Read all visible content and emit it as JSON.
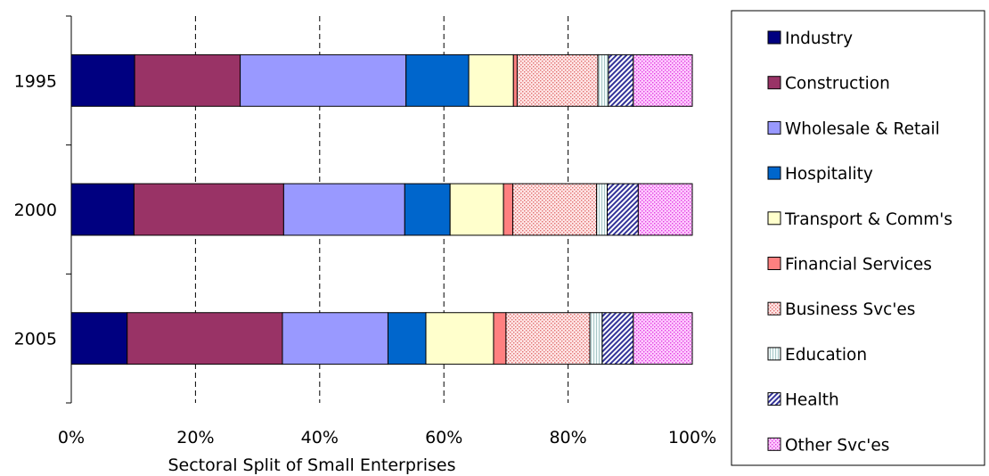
{
  "chart_data": {
    "type": "bar",
    "orientation": "horizontal",
    "stacked": "percent",
    "title": "",
    "xlabel": "Sectoral Split of Small Enterprises",
    "ylabel": "",
    "xlim": [
      0,
      100
    ],
    "x_ticks": [
      "0%",
      "20%",
      "40%",
      "60%",
      "80%",
      "100%"
    ],
    "categories": [
      "1995",
      "2000",
      "2005"
    ],
    "grid": "vertical dashed",
    "legend_position": "right",
    "series": [
      {
        "name": "Industry",
        "color": "#000080",
        "pattern": "solid",
        "values": [
          10.2,
          10.1,
          9.0
        ]
      },
      {
        "name": "Construction",
        "color": "#993366",
        "pattern": "solid",
        "values": [
          17.0,
          24.1,
          25.0
        ]
      },
      {
        "name": "Wholesale & Retail",
        "color": "#9999ff",
        "pattern": "solid",
        "values": [
          26.7,
          19.5,
          17.0
        ]
      },
      {
        "name": "Hospitality",
        "color": "#0066cc",
        "pattern": "solid",
        "values": [
          10.1,
          7.3,
          6.1
        ]
      },
      {
        "name": "Transport & Comm's",
        "color": "#ffffcc",
        "pattern": "solid",
        "values": [
          7.2,
          8.6,
          10.9
        ]
      },
      {
        "name": "Financial Services",
        "color": "#ff8080",
        "pattern": "solid",
        "values": [
          0.6,
          1.5,
          2.0
        ]
      },
      {
        "name": "Business Svc'es",
        "color": "#ffcccc",
        "pattern": "dots",
        "values": [
          13.0,
          13.5,
          13.5
        ]
      },
      {
        "name": "Education",
        "color": "#e6f3f3",
        "pattern": "vlines",
        "values": [
          1.7,
          1.7,
          2.0
        ]
      },
      {
        "name": "Health",
        "color": "#333399",
        "pattern": "diagonal",
        "values": [
          4.0,
          5.0,
          5.0
        ]
      },
      {
        "name": "Other Svc'es",
        "color": "#ff99ff",
        "pattern": "dots",
        "values": [
          9.5,
          8.7,
          9.5
        ]
      }
    ]
  }
}
